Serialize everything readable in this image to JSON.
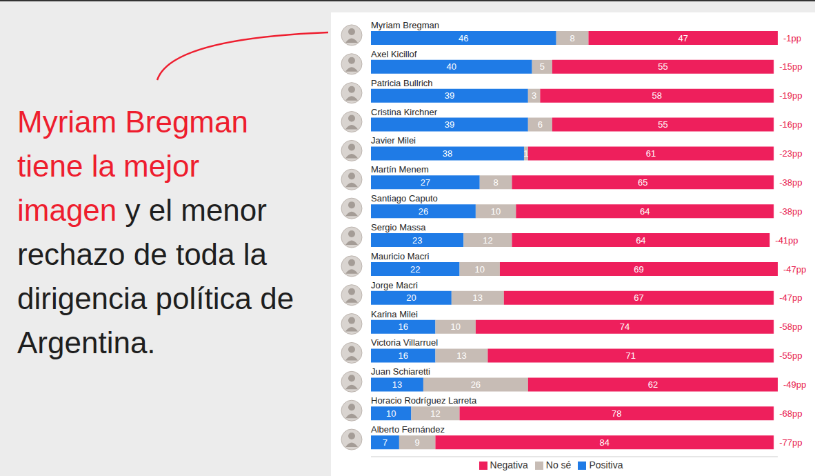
{
  "headline": [
    {
      "text": "Myriam Bregman tiene la mejor imagen",
      "color": "#ee1d2e"
    },
    {
      "text": " y el menor rechazo de toda la dirigencia política de Argentina.",
      "color": "#1e1e1e"
    }
  ],
  "chart_data": {
    "type": "bar",
    "orientation": "horizontal",
    "stacked": true,
    "data_labels": true,
    "tick_labels": false,
    "legend": "bottom",
    "categories": [
      "Myriam Bregman",
      "Axel Kicillof",
      "Patricia Bullrich",
      "Cristina Kirchner",
      "Javier Milei",
      "Martín Menem",
      "Santiago Caputo",
      "Sergio Massa",
      "Mauricio Macri",
      "Jorge Macri",
      "Karina Milei",
      "Victoria Villarruel",
      "Juan Schiaretti",
      "Horacio Rodríguez Larreta",
      "Alberto Fernández"
    ],
    "series": [
      {
        "name": "Positiva",
        "color": "#1f7be6",
        "values": [
          46,
          40,
          39,
          39,
          38,
          27,
          26,
          23,
          22,
          20,
          16,
          16,
          13,
          10,
          7
        ]
      },
      {
        "name": "No sé",
        "color": "#c7bcb5",
        "values": [
          8,
          5,
          3,
          6,
          1,
          8,
          10,
          12,
          10,
          13,
          10,
          13,
          26,
          12,
          9
        ]
      },
      {
        "name": "Negativa",
        "color": "#ee1f5c",
        "values": [
          47,
          55,
          58,
          55,
          61,
          65,
          64,
          64,
          69,
          67,
          74,
          71,
          62,
          78,
          84
        ]
      }
    ],
    "xlim": [
      0,
      101
    ],
    "annotations": {
      "labels": [
        "-1pp",
        "-15pp",
        "-19pp",
        "-16pp",
        "-23pp",
        "-38pp",
        "-38pp",
        "-41pp",
        "-47pp",
        "-47pp",
        "-58pp",
        "-55pp",
        "-49pp",
        "-68pp",
        "-77pp"
      ],
      "color": "#e8194b"
    }
  }
}
